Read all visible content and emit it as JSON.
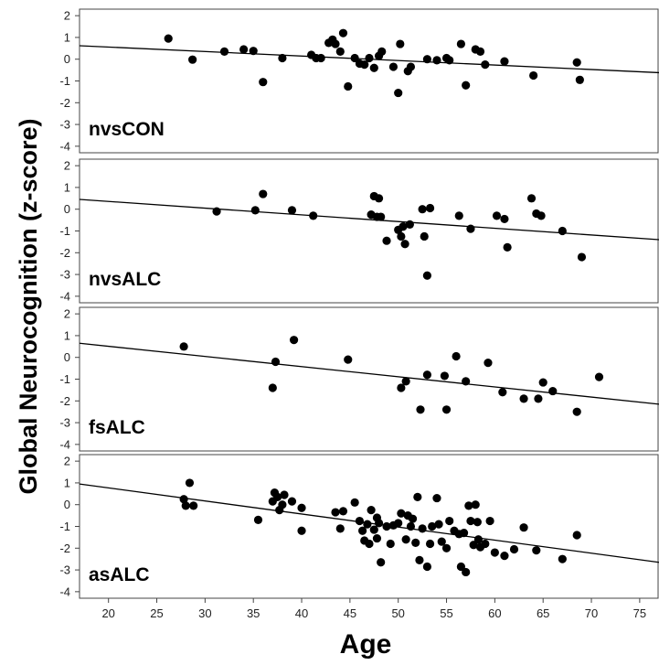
{
  "chart_data": {
    "type": "scatter",
    "ylabel": "Global Neurocognition (z-score)",
    "xlabel": "Age",
    "xlim": [
      17,
      77
    ],
    "ylim": [
      -4.3,
      2.3
    ],
    "x_ticks": [
      20,
      25,
      30,
      35,
      40,
      45,
      50,
      55,
      60,
      65,
      70,
      75
    ],
    "y_ticks": [
      2,
      1,
      0,
      -1,
      -2,
      -3,
      -4
    ],
    "grid": false,
    "panels": [
      {
        "label": "nvsCON",
        "fit_line": [
          [
            17,
            0.62
          ],
          [
            77,
            -0.62
          ]
        ],
        "points": [
          [
            26.2,
            0.95
          ],
          [
            28.7,
            -0.02
          ],
          [
            32.0,
            0.35
          ],
          [
            34.0,
            0.45
          ],
          [
            35.0,
            0.38
          ],
          [
            36.0,
            -1.05
          ],
          [
            38.0,
            0.05
          ],
          [
            41.0,
            0.2
          ],
          [
            41.5,
            0.05
          ],
          [
            42.0,
            0.05
          ],
          [
            42.8,
            0.75
          ],
          [
            43.2,
            0.9
          ],
          [
            43.5,
            0.7
          ],
          [
            44.0,
            0.35
          ],
          [
            44.3,
            1.2
          ],
          [
            44.8,
            -1.25
          ],
          [
            45.5,
            0.05
          ],
          [
            46.0,
            -0.2
          ],
          [
            46.5,
            -0.25
          ],
          [
            47.0,
            0.05
          ],
          [
            47.5,
            -0.4
          ],
          [
            48.0,
            0.15
          ],
          [
            48.3,
            0.35
          ],
          [
            49.5,
            -0.35
          ],
          [
            50.0,
            -1.55
          ],
          [
            50.2,
            0.7
          ],
          [
            51.0,
            -0.55
          ],
          [
            51.3,
            -0.35
          ],
          [
            53.0,
            0.0
          ],
          [
            54.0,
            -0.05
          ],
          [
            55.0,
            0.05
          ],
          [
            55.3,
            -0.05
          ],
          [
            56.5,
            0.7
          ],
          [
            57.0,
            -1.2
          ],
          [
            58.0,
            0.45
          ],
          [
            58.5,
            0.35
          ],
          [
            59.0,
            -0.25
          ],
          [
            61.0,
            -0.1
          ],
          [
            64.0,
            -0.75
          ],
          [
            68.5,
            -0.15
          ],
          [
            68.8,
            -0.95
          ]
        ]
      },
      {
        "label": "nvsALC",
        "fit_line": [
          [
            17,
            0.45
          ],
          [
            77,
            -1.4
          ]
        ],
        "points": [
          [
            31.2,
            -0.1
          ],
          [
            35.2,
            -0.05
          ],
          [
            36.0,
            0.7
          ],
          [
            39.0,
            -0.05
          ],
          [
            41.2,
            -0.3
          ],
          [
            47.2,
            -0.25
          ],
          [
            47.5,
            0.6
          ],
          [
            47.8,
            -0.35
          ],
          [
            48.0,
            0.5
          ],
          [
            48.2,
            -0.35
          ],
          [
            48.8,
            -1.45
          ],
          [
            50.0,
            -0.95
          ],
          [
            50.3,
            -1.25
          ],
          [
            50.5,
            -0.8
          ],
          [
            50.7,
            -1.6
          ],
          [
            51.2,
            -0.7
          ],
          [
            52.5,
            0.0
          ],
          [
            52.7,
            -1.25
          ],
          [
            53.0,
            -3.05
          ],
          [
            53.3,
            0.05
          ],
          [
            56.3,
            -0.3
          ],
          [
            57.5,
            -0.9
          ],
          [
            60.2,
            -0.3
          ],
          [
            61.0,
            -0.45
          ],
          [
            61.3,
            -1.75
          ],
          [
            63.8,
            0.5
          ],
          [
            64.3,
            -0.2
          ],
          [
            64.8,
            -0.3
          ],
          [
            67.0,
            -1.0
          ],
          [
            69.0,
            -2.2
          ]
        ]
      },
      {
        "label": "fsALC",
        "fit_line": [
          [
            17,
            0.65
          ],
          [
            77,
            -2.15
          ]
        ],
        "points": [
          [
            27.8,
            0.5
          ],
          [
            37.0,
            -1.4
          ],
          [
            37.3,
            -0.2
          ],
          [
            39.2,
            0.8
          ],
          [
            44.8,
            -0.1
          ],
          [
            50.3,
            -1.4
          ],
          [
            50.8,
            -1.1
          ],
          [
            52.3,
            -2.4
          ],
          [
            53.0,
            -0.8
          ],
          [
            54.8,
            -0.85
          ],
          [
            55.0,
            -2.4
          ],
          [
            56.0,
            0.05
          ],
          [
            57.0,
            -1.1
          ],
          [
            59.3,
            -0.25
          ],
          [
            60.8,
            -1.6
          ],
          [
            63.0,
            -1.9
          ],
          [
            64.5,
            -1.9
          ],
          [
            65.0,
            -1.15
          ],
          [
            66.0,
            -1.55
          ],
          [
            68.5,
            -2.5
          ],
          [
            70.8,
            -0.9
          ]
        ]
      },
      {
        "label": "asALC",
        "fit_line": [
          [
            17,
            0.95
          ],
          [
            77,
            -2.65
          ]
        ],
        "points": [
          [
            27.8,
            0.25
          ],
          [
            28.0,
            -0.05
          ],
          [
            28.4,
            1.0
          ],
          [
            28.8,
            -0.05
          ],
          [
            35.5,
            -0.7
          ],
          [
            37.0,
            0.15
          ],
          [
            37.2,
            0.55
          ],
          [
            37.5,
            0.35
          ],
          [
            37.7,
            -0.25
          ],
          [
            38.0,
            0.0
          ],
          [
            38.2,
            0.45
          ],
          [
            39.0,
            0.15
          ],
          [
            40.0,
            -0.15
          ],
          [
            40.0,
            -1.2
          ],
          [
            43.5,
            -0.35
          ],
          [
            44.0,
            -1.1
          ],
          [
            44.3,
            -0.3
          ],
          [
            45.5,
            0.1
          ],
          [
            46.0,
            -0.75
          ],
          [
            46.3,
            -1.2
          ],
          [
            46.5,
            -1.65
          ],
          [
            46.8,
            -0.9
          ],
          [
            47.0,
            -1.8
          ],
          [
            47.2,
            -0.25
          ],
          [
            47.5,
            -1.15
          ],
          [
            47.8,
            -1.55
          ],
          [
            47.8,
            -0.6
          ],
          [
            48.0,
            -0.85
          ],
          [
            48.2,
            -2.65
          ],
          [
            48.8,
            -1.0
          ],
          [
            49.2,
            -1.8
          ],
          [
            49.5,
            -0.95
          ],
          [
            50.0,
            -0.85
          ],
          [
            50.3,
            -0.4
          ],
          [
            50.8,
            -1.6
          ],
          [
            51.0,
            -0.5
          ],
          [
            51.3,
            -1.0
          ],
          [
            51.5,
            -0.65
          ],
          [
            51.8,
            -1.75
          ],
          [
            52.0,
            0.35
          ],
          [
            52.2,
            -2.55
          ],
          [
            52.5,
            -1.1
          ],
          [
            53.0,
            -2.85
          ],
          [
            53.3,
            -1.8
          ],
          [
            53.5,
            -1.0
          ],
          [
            54.0,
            0.3
          ],
          [
            54.2,
            -0.9
          ],
          [
            54.5,
            -1.7
          ],
          [
            55.0,
            -2.0
          ],
          [
            55.3,
            -0.75
          ],
          [
            55.8,
            -1.2
          ],
          [
            56.3,
            -1.35
          ],
          [
            56.5,
            -2.85
          ],
          [
            56.8,
            -1.3
          ],
          [
            57.0,
            -3.1
          ],
          [
            57.3,
            -0.05
          ],
          [
            57.5,
            -0.75
          ],
          [
            57.8,
            -1.85
          ],
          [
            58.0,
            0.0
          ],
          [
            58.2,
            -0.8
          ],
          [
            58.3,
            -1.6
          ],
          [
            58.5,
            -1.95
          ],
          [
            59.0,
            -1.8
          ],
          [
            59.5,
            -0.75
          ],
          [
            60.0,
            -2.2
          ],
          [
            61.0,
            -2.35
          ],
          [
            62.0,
            -2.05
          ],
          [
            63.0,
            -1.05
          ],
          [
            64.3,
            -2.1
          ],
          [
            67.0,
            -2.5
          ],
          [
            68.5,
            -1.4
          ]
        ]
      }
    ]
  }
}
